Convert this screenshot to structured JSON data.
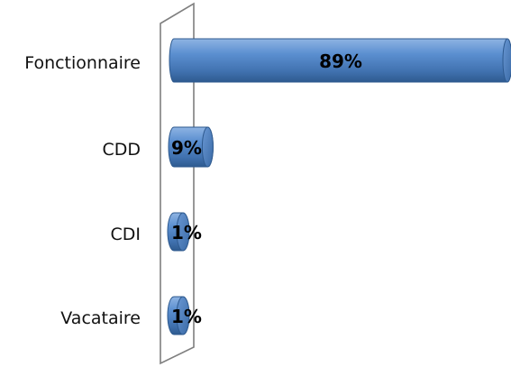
{
  "chart_data": {
    "type": "bar",
    "orientation": "horizontal",
    "style": "3d-cylinder",
    "categories": [
      "Fonctionnaire",
      "CDD",
      "CDI",
      "Vacataire"
    ],
    "values": [
      89,
      9,
      1,
      1
    ],
    "data_labels": [
      "89%",
      "9%",
      "1%",
      "1%"
    ],
    "xlim": [
      0,
      89
    ],
    "grid": false,
    "legend": "none",
    "bar_color": "#4f81bd",
    "bar_dark_color": "#2e5a8f",
    "bar_light_color": "#8fb4e3",
    "wall_color": "#7f7f7f"
  }
}
